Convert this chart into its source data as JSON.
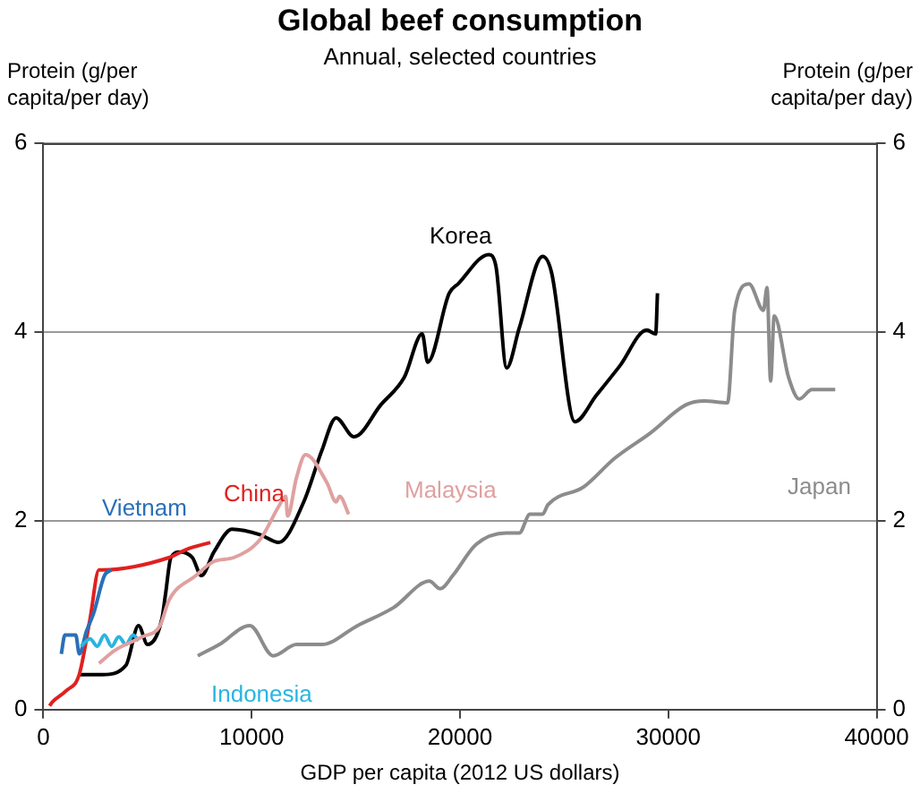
{
  "chart_data": {
    "type": "line",
    "title": "Global beef consumption",
    "subtitle": "Annual, selected countries",
    "xlabel": "GDP per capita (2012 US dollars)",
    "ylabel": "Protein (g/per capita/per day)",
    "y2label": "Protein (g/per capita/per day)",
    "xlim": [
      0,
      40000
    ],
    "xticks": [
      0,
      10000,
      20000,
      30000,
      40000
    ],
    "ylim": [
      0,
      6
    ],
    "yticks": [
      0,
      2,
      4,
      6
    ],
    "y2lim": [
      0,
      6
    ],
    "y2ticks": [
      0,
      2,
      4,
      6
    ],
    "grid": "y",
    "legend": false,
    "marker": "none",
    "line_style": "solid",
    "series": [
      {
        "name": "Japan",
        "color": "#8c8c8c",
        "x": [
          7413,
          8448,
          9913,
          11034,
          12154,
          13361,
          15085,
          16809,
          18533,
          19050,
          19654,
          20774,
          22240,
          22843,
          23360,
          23964,
          24222,
          25946,
          27412,
          29136,
          30860,
          31722,
          32842,
          33187,
          33876,
          34566,
          34739,
          34911,
          35083,
          35773,
          36290,
          36894,
          38014
        ],
        "values": [
          0.57,
          0.69,
          0.89,
          0.57,
          0.69,
          0.69,
          0.89,
          1.08,
          1.36,
          1.28,
          1.42,
          1.75,
          1.87,
          1.87,
          2.07,
          2.07,
          2.17,
          2.36,
          2.66,
          2.93,
          3.23,
          3.27,
          3.25,
          4.23,
          4.51,
          4.23,
          4.47,
          3.48,
          4.17,
          3.52,
          3.29,
          3.39,
          3.39
        ]
      },
      {
        "name": "Malaysia",
        "color": "#e0a0a0",
        "x": [
          2672,
          3448,
          4741,
          5603,
          6034,
          7327,
          8189,
          9137,
          10430,
          11292,
          11637,
          11723,
          12154,
          12585,
          13620,
          14051,
          14223,
          14654
        ],
        "values": [
          0.49,
          0.63,
          0.77,
          0.89,
          1.16,
          1.42,
          1.57,
          1.61,
          1.81,
          2.15,
          2.26,
          2.05,
          2.46,
          2.7,
          2.4,
          2.2,
          2.26,
          2.07
        ]
      },
      {
        "name": "Indonesia",
        "color": "#29b5e0",
        "x": [
          1810,
          2241,
          2586,
          2931,
          3276,
          3620,
          3965,
          4310,
          4569
        ],
        "values": [
          0.67,
          0.75,
          0.67,
          0.79,
          0.67,
          0.77,
          0.69,
          0.79,
          0.73
        ]
      },
      {
        "name": "Vietnam",
        "color": "#2a6fb8",
        "x": [
          862,
          1034,
          1552,
          1724,
          2069,
          2414,
          2931,
          3276
        ],
        "values": [
          0.59,
          0.79,
          0.79,
          0.59,
          0.83,
          1.02,
          1.42,
          1.48
        ]
      },
      {
        "name": "China",
        "color": "#e02020",
        "x": [
          300,
          430,
          1100,
          1720,
          2240,
          2670,
          2840,
          6030,
          6900,
          8017
        ],
        "values": [
          0.04,
          0.08,
          0.2,
          0.37,
          0.96,
          1.48,
          1.48,
          1.61,
          1.7,
          1.77
        ]
      },
      {
        "name": "Korea",
        "color": "#000000",
        "x": [
          1724,
          2845,
          3965,
          4569,
          5000,
          5689,
          5862,
          6120,
          6551,
          7155,
          7586,
          8189,
          9051,
          10430,
          11292,
          12499,
          13361,
          14051,
          14913,
          16206,
          17326,
          18188,
          18447,
          19481,
          19912,
          21378,
          21722,
          22240,
          22843,
          23964,
          24395,
          25515,
          26550,
          27670,
          28963,
          29394,
          29480
        ],
        "values": [
          0.37,
          0.37,
          0.47,
          0.89,
          0.69,
          0.96,
          1.22,
          1.61,
          1.67,
          1.61,
          1.42,
          1.67,
          1.91,
          1.85,
          1.77,
          2.2,
          2.74,
          3.09,
          2.89,
          3.23,
          3.52,
          3.98,
          3.68,
          4.41,
          4.51,
          4.82,
          4.7,
          3.62,
          4.04,
          4.8,
          4.63,
          3.05,
          3.33,
          3.64,
          4.02,
          3.98,
          4.41
        ]
      }
    ]
  }
}
